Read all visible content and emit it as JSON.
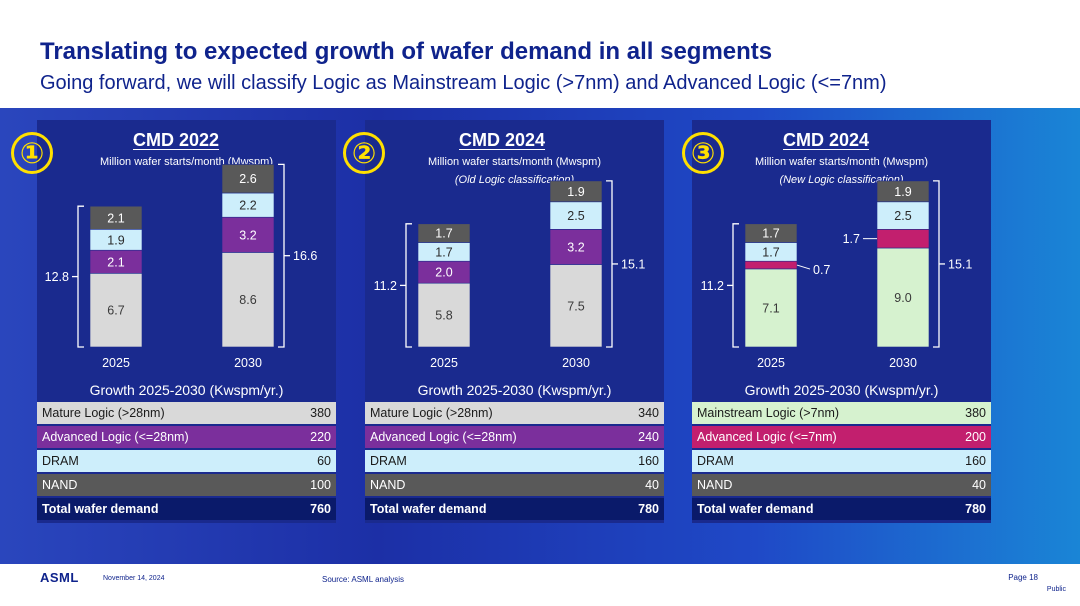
{
  "slide": {
    "title": "Translating to expected growth of wafer demand in all segments",
    "subtitle": "Going forward, we will classify Logic as Mainstream Logic (>7nm) and Advanced Logic (<=7nm)"
  },
  "colors": {
    "brand": "#0f238c",
    "panel_bg": "#1a2a8e",
    "mature_logic": "#d9d9d9",
    "advanced_logic": "#7b2f9c",
    "mainstream_logic": "#d6f2cf",
    "advanced_logic_new": "#c21f6e",
    "dram": "#cdeefb",
    "nand": "#595959",
    "total_row": "#0a1a6a",
    "circle_accent": "#ffe000"
  },
  "chart_data": [
    {
      "type": "bar",
      "stacked": true,
      "panel_number": "①",
      "title": "CMD 2022",
      "unit": "Million wafer starts/month (Mwspm)",
      "classification_note": "",
      "categories": [
        "2025",
        "2030"
      ],
      "series": [
        {
          "name": "Mature Logic (>28nm)",
          "color_key": "mature_logic",
          "text_color": "#3a3a3a",
          "values": [
            6.7,
            8.6
          ]
        },
        {
          "name": "Advanced Logic (<=28nm)",
          "color_key": "advanced_logic",
          "text_color": "#ffffff",
          "values": [
            2.1,
            3.2
          ]
        },
        {
          "name": "DRAM",
          "color_key": "dram",
          "text_color": "#2a2a2a",
          "values": [
            1.9,
            2.2
          ]
        },
        {
          "name": "NAND",
          "color_key": "nand",
          "text_color": "#ffffff",
          "values": [
            2.1,
            2.6
          ]
        }
      ],
      "value_labels": [
        [
          "6.7",
          "2.1",
          "1.9",
          "2.1"
        ],
        [
          "8.6",
          "3.2",
          "2.2",
          "2.6"
        ]
      ],
      "totals": [
        "12.8",
        "16.6"
      ],
      "callouts": [],
      "growth_title": "Growth 2025-2030 (Kwspm/yr.)",
      "growth_rows": [
        {
          "label": "Mature Logic (>28nm)",
          "value": "380",
          "color_key": "mature_logic",
          "text_color": "#1a1a1a"
        },
        {
          "label": "Advanced Logic (<=28nm)",
          "value": "220",
          "color_key": "advanced_logic",
          "text_color": "#ffffff"
        },
        {
          "label": "DRAM",
          "value": "60",
          "color_key": "dram",
          "text_color": "#1a1a1a"
        },
        {
          "label": "NAND",
          "value": "100",
          "color_key": "nand",
          "text_color": "#ffffff"
        },
        {
          "label": "Total wafer demand",
          "value": "760",
          "color_key": "total_row",
          "text_color": "#ffffff",
          "total": true
        }
      ]
    },
    {
      "type": "bar",
      "stacked": true,
      "panel_number": "②",
      "title": "CMD 2024",
      "unit": "Million wafer starts/month (Mwspm)",
      "classification_note": "(Old Logic classification)",
      "categories": [
        "2025",
        "2030"
      ],
      "series": [
        {
          "name": "Mature Logic (>28nm)",
          "color_key": "mature_logic",
          "text_color": "#3a3a3a",
          "values": [
            5.8,
            7.5
          ]
        },
        {
          "name": "Advanced Logic (<=28nm)",
          "color_key": "advanced_logic",
          "text_color": "#ffffff",
          "values": [
            2.0,
            3.2
          ]
        },
        {
          "name": "DRAM",
          "color_key": "dram",
          "text_color": "#2a2a2a",
          "values": [
            1.7,
            2.5
          ]
        },
        {
          "name": "NAND",
          "color_key": "nand",
          "text_color": "#ffffff",
          "values": [
            1.7,
            1.9
          ]
        }
      ],
      "value_labels": [
        [
          "5.8",
          "2.0",
          "1.7",
          "1.7"
        ],
        [
          "7.5",
          "3.2",
          "2.5",
          "1.9"
        ]
      ],
      "totals": [
        "11.2",
        "15.1"
      ],
      "callouts": [],
      "growth_title": "Growth 2025-2030 (Kwspm/yr.)",
      "growth_rows": [
        {
          "label": "Mature Logic (>28nm)",
          "value": "340",
          "color_key": "mature_logic",
          "text_color": "#1a1a1a"
        },
        {
          "label": "Advanced Logic (<=28nm)",
          "value": "240",
          "color_key": "advanced_logic",
          "text_color": "#ffffff"
        },
        {
          "label": "DRAM",
          "value": "160",
          "color_key": "dram",
          "text_color": "#1a1a1a"
        },
        {
          "label": "NAND",
          "value": "40",
          "color_key": "nand",
          "text_color": "#ffffff"
        },
        {
          "label": "Total wafer demand",
          "value": "780",
          "color_key": "total_row",
          "text_color": "#ffffff",
          "total": true
        }
      ]
    },
    {
      "type": "bar",
      "stacked": true,
      "panel_number": "③",
      "title": "CMD 2024",
      "unit": "Million wafer starts/month (Mwspm)",
      "classification_note": "(New Logic classification)",
      "categories": [
        "2025",
        "2030"
      ],
      "series": [
        {
          "name": "Mainstream Logic (>7nm)",
          "color_key": "mainstream_logic",
          "text_color": "#3a3a3a",
          "values": [
            7.1,
            9.0
          ]
        },
        {
          "name": "Advanced Logic (<=7nm)",
          "color_key": "advanced_logic_new",
          "text_color": "#ffffff",
          "values": [
            0.7,
            1.7
          ]
        },
        {
          "name": "DRAM",
          "color_key": "dram",
          "text_color": "#2a2a2a",
          "values": [
            1.7,
            2.5
          ]
        },
        {
          "name": "NAND",
          "color_key": "nand",
          "text_color": "#ffffff",
          "values": [
            1.7,
            1.9
          ]
        }
      ],
      "value_labels": [
        [
          "7.1",
          "",
          "1.7",
          "1.7"
        ],
        [
          "9.0",
          "",
          "2.5",
          "1.9"
        ]
      ],
      "totals": [
        "11.2",
        "15.1"
      ],
      "callouts": [
        {
          "category_index": 0,
          "series_index": 1,
          "text": "0.7",
          "side": "right"
        },
        {
          "category_index": 1,
          "series_index": 1,
          "text": "1.7",
          "side": "left"
        }
      ],
      "growth_title": "Growth 2025-2030 (Kwspm/yr.)",
      "growth_rows": [
        {
          "label": "Mainstream Logic (>7nm)",
          "value": "380",
          "color_key": "mainstream_logic",
          "text_color": "#1a1a1a"
        },
        {
          "label": "Advanced Logic (<=7nm)",
          "value": "200",
          "color_key": "advanced_logic_new",
          "text_color": "#ffffff"
        },
        {
          "label": "DRAM",
          "value": "160",
          "color_key": "dram",
          "text_color": "#1a1a1a"
        },
        {
          "label": "NAND",
          "value": "40",
          "color_key": "nand",
          "text_color": "#ffffff"
        },
        {
          "label": "Total wafer demand",
          "value": "780",
          "color_key": "total_row",
          "text_color": "#ffffff",
          "total": true
        }
      ]
    }
  ],
  "footer": {
    "logo": "ASML",
    "date": "November 14, 2024",
    "source": "Source: ASML analysis",
    "page": "Page 18",
    "classification": "Public"
  }
}
